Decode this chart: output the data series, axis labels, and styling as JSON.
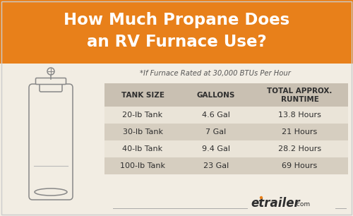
{
  "title_line1": "How Much Propane Does",
  "title_line2": "an RV Furnace Use?",
  "subtitle": "*If Furnace Rated at 30,000 BTUs Per Hour",
  "col_headers": [
    "TANK SIZE",
    "GALLONS",
    "TOTAL APPROX.",
    "RUNTIME"
  ],
  "rows": [
    [
      "20-lb Tank",
      "4.6 Gal",
      "13.8 Hours"
    ],
    [
      "30-lb Tank",
      "7 Gal",
      "21 Hours"
    ],
    [
      "40-lb Tank",
      "9.4 Gal",
      "28.2 Hours"
    ],
    [
      "100-lb Tank",
      "23 Gal",
      "69 Hours"
    ]
  ],
  "title_bg_color": "#E8801A",
  "title_text_color": "#FFFFFF",
  "body_bg_color": "#F2EDE3",
  "row_alt_color": "#D6CEC0",
  "row_light_color": "#EAE4D8",
  "header_bg_color": "#C9C0B2",
  "table_text_color": "#2E2E2E",
  "subtitle_color": "#555555",
  "brand_italic": "etrailer",
  "brand_suffix": ".com",
  "brand_color_dark": "#2E2E2E",
  "brand_dot_color": "#E8801A",
  "tank_color": "#888888",
  "white": "#FFFFFF"
}
